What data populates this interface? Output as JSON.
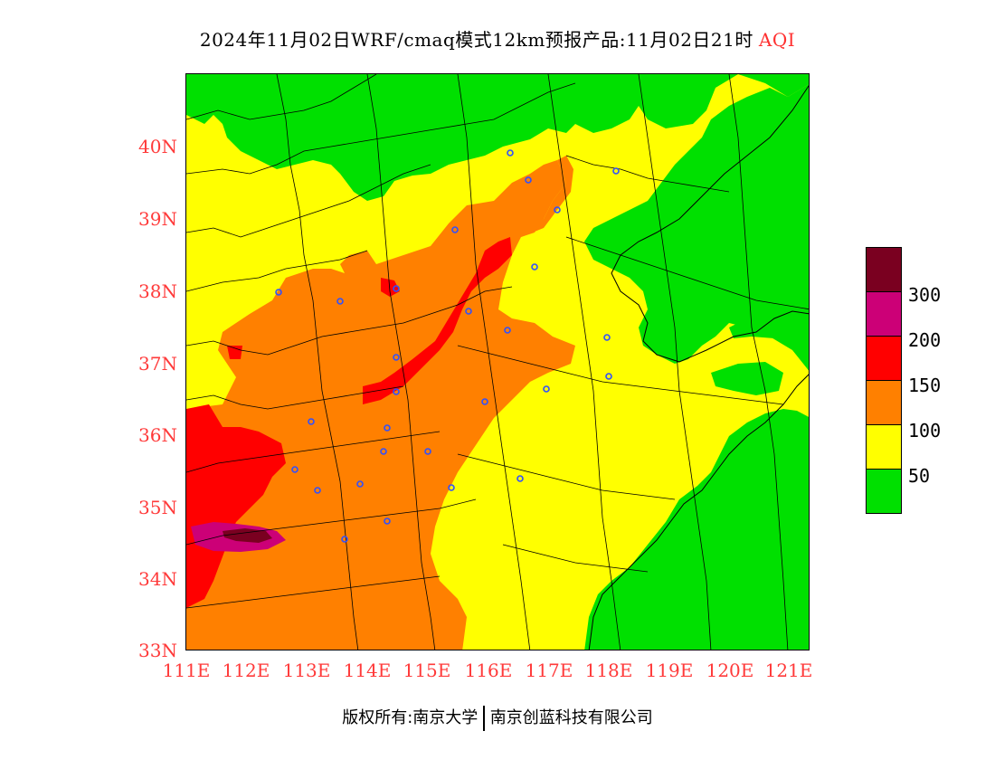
{
  "title": {
    "main": "2024年11月02日WRF/cmaq模式12km预报产品:11月02日21时",
    "variable": "AQI"
  },
  "map": {
    "lat_labels": [
      "40N",
      "39N",
      "38N",
      "37N",
      "36N",
      "35N",
      "34N",
      "33N"
    ],
    "lon_labels": [
      "111E",
      "112E",
      "113E",
      "114E",
      "115E",
      "116E",
      "117E",
      "118E",
      "119E",
      "120E",
      "121E"
    ],
    "lat_range": [
      33,
      41
    ],
    "lon_range": [
      111,
      121.4
    ],
    "colors": {
      "good": "#00e000",
      "moderate": "#ffff00",
      "sensitive": "#ff8000",
      "unhealthy": "#ff0000",
      "very_unhealthy": "#cc0077",
      "hazardous": "#7a0020",
      "boundary": "#000000",
      "station": "#3050ff"
    }
  },
  "legend": {
    "labels": [
      "300",
      "200",
      "150",
      "100",
      "50"
    ],
    "colors": [
      "#7a0020",
      "#cc0077",
      "#ff0000",
      "#ff8000",
      "#ffff00",
      "#00e000"
    ]
  },
  "footer": {
    "left": "版权所有:南京大学",
    "right": "南京创蓝科技有限公司"
  }
}
